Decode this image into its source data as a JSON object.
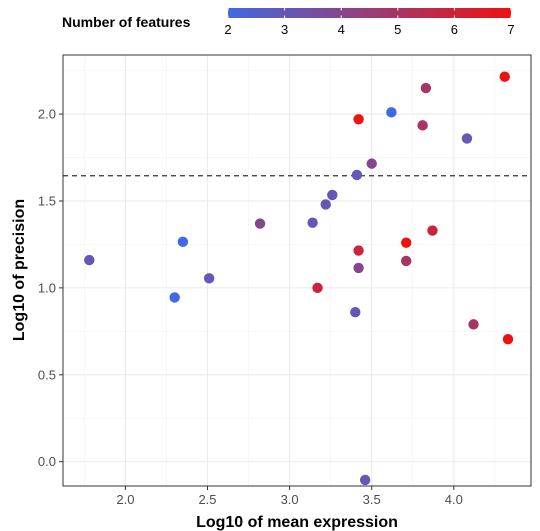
{
  "chart_data": {
    "type": "scatter",
    "xlabel": "Log10 of mean expression",
    "ylabel": "Log10 of precision",
    "xlim": [
      1.62,
      4.47
    ],
    "ylim": [
      -0.14,
      2.34
    ],
    "x_ticks": [
      2.0,
      2.5,
      3.0,
      3.5,
      4.0
    ],
    "x_tick_labels": [
      "2.0",
      "2.5",
      "3.0",
      "3.5",
      "4.0"
    ],
    "y_ticks": [
      0.0,
      0.5,
      1.0,
      1.5,
      2.0
    ],
    "y_tick_labels": [
      "0.0",
      "0.5",
      "1.0",
      "1.5",
      "2.0"
    ],
    "grid": true,
    "hline": {
      "y": 1.645,
      "style": "dashed"
    },
    "legend": {
      "title": "Number of features",
      "placement": "top",
      "min": 2,
      "max": 7,
      "ticks": [
        2,
        3,
        4,
        5,
        6,
        7
      ],
      "tick_labels": [
        "2",
        "3",
        "4",
        "5",
        "6",
        "7"
      ],
      "low_color": "#4169e1",
      "high_color": "#ee1111"
    },
    "points": [
      {
        "x": 1.78,
        "y": 1.16,
        "features": 3
      },
      {
        "x": 2.3,
        "y": 0.945,
        "features": 2
      },
      {
        "x": 2.35,
        "y": 1.265,
        "features": 2
      },
      {
        "x": 2.51,
        "y": 1.055,
        "features": 3
      },
      {
        "x": 2.82,
        "y": 1.37,
        "features": 4
      },
      {
        "x": 3.14,
        "y": 1.375,
        "features": 3
      },
      {
        "x": 3.17,
        "y": 1.0,
        "features": 6
      },
      {
        "x": 3.22,
        "y": 1.48,
        "features": 3
      },
      {
        "x": 3.26,
        "y": 1.535,
        "features": 3
      },
      {
        "x": 3.4,
        "y": 0.86,
        "features": 3
      },
      {
        "x": 3.41,
        "y": 1.65,
        "features": 3
      },
      {
        "x": 3.42,
        "y": 1.115,
        "features": 4
      },
      {
        "x": 3.42,
        "y": 1.215,
        "features": 6
      },
      {
        "x": 3.42,
        "y": 1.97,
        "features": 7
      },
      {
        "x": 3.46,
        "y": -0.105,
        "features": 3
      },
      {
        "x": 3.5,
        "y": 1.715,
        "features": 4
      },
      {
        "x": 3.62,
        "y": 2.01,
        "features": 2
      },
      {
        "x": 3.71,
        "y": 1.155,
        "features": 5
      },
      {
        "x": 3.71,
        "y": 1.26,
        "features": 7
      },
      {
        "x": 3.81,
        "y": 1.935,
        "features": 5
      },
      {
        "x": 3.83,
        "y": 2.15,
        "features": 5
      },
      {
        "x": 3.87,
        "y": 1.33,
        "features": 6
      },
      {
        "x": 4.08,
        "y": 1.86,
        "features": 3
      },
      {
        "x": 4.12,
        "y": 0.79,
        "features": 5
      },
      {
        "x": 4.31,
        "y": 2.215,
        "features": 7
      },
      {
        "x": 4.33,
        "y": 0.705,
        "features": 7
      }
    ]
  }
}
